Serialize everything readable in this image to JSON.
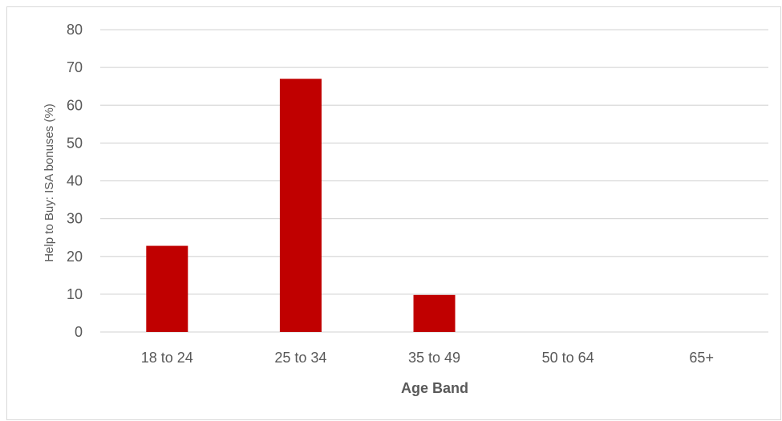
{
  "chart_data": {
    "type": "bar",
    "title": "",
    "categories": [
      "18 to 24",
      "25 to 34",
      "35 to 49",
      "50 to 64",
      "65+"
    ],
    "values": [
      22.8,
      67.0,
      9.8,
      0,
      0
    ],
    "xlabel": "Age Band",
    "ylabel": "Help to Buy: ISA bonuses (%)",
    "ylim": [
      0,
      80
    ],
    "yticks": [
      0,
      10,
      20,
      30,
      40,
      50,
      60,
      70,
      80
    ],
    "grid": true,
    "legend": "none",
    "bar_color": "#c00000",
    "grid_color": "#d9d9d9",
    "text_color": "#595959"
  }
}
